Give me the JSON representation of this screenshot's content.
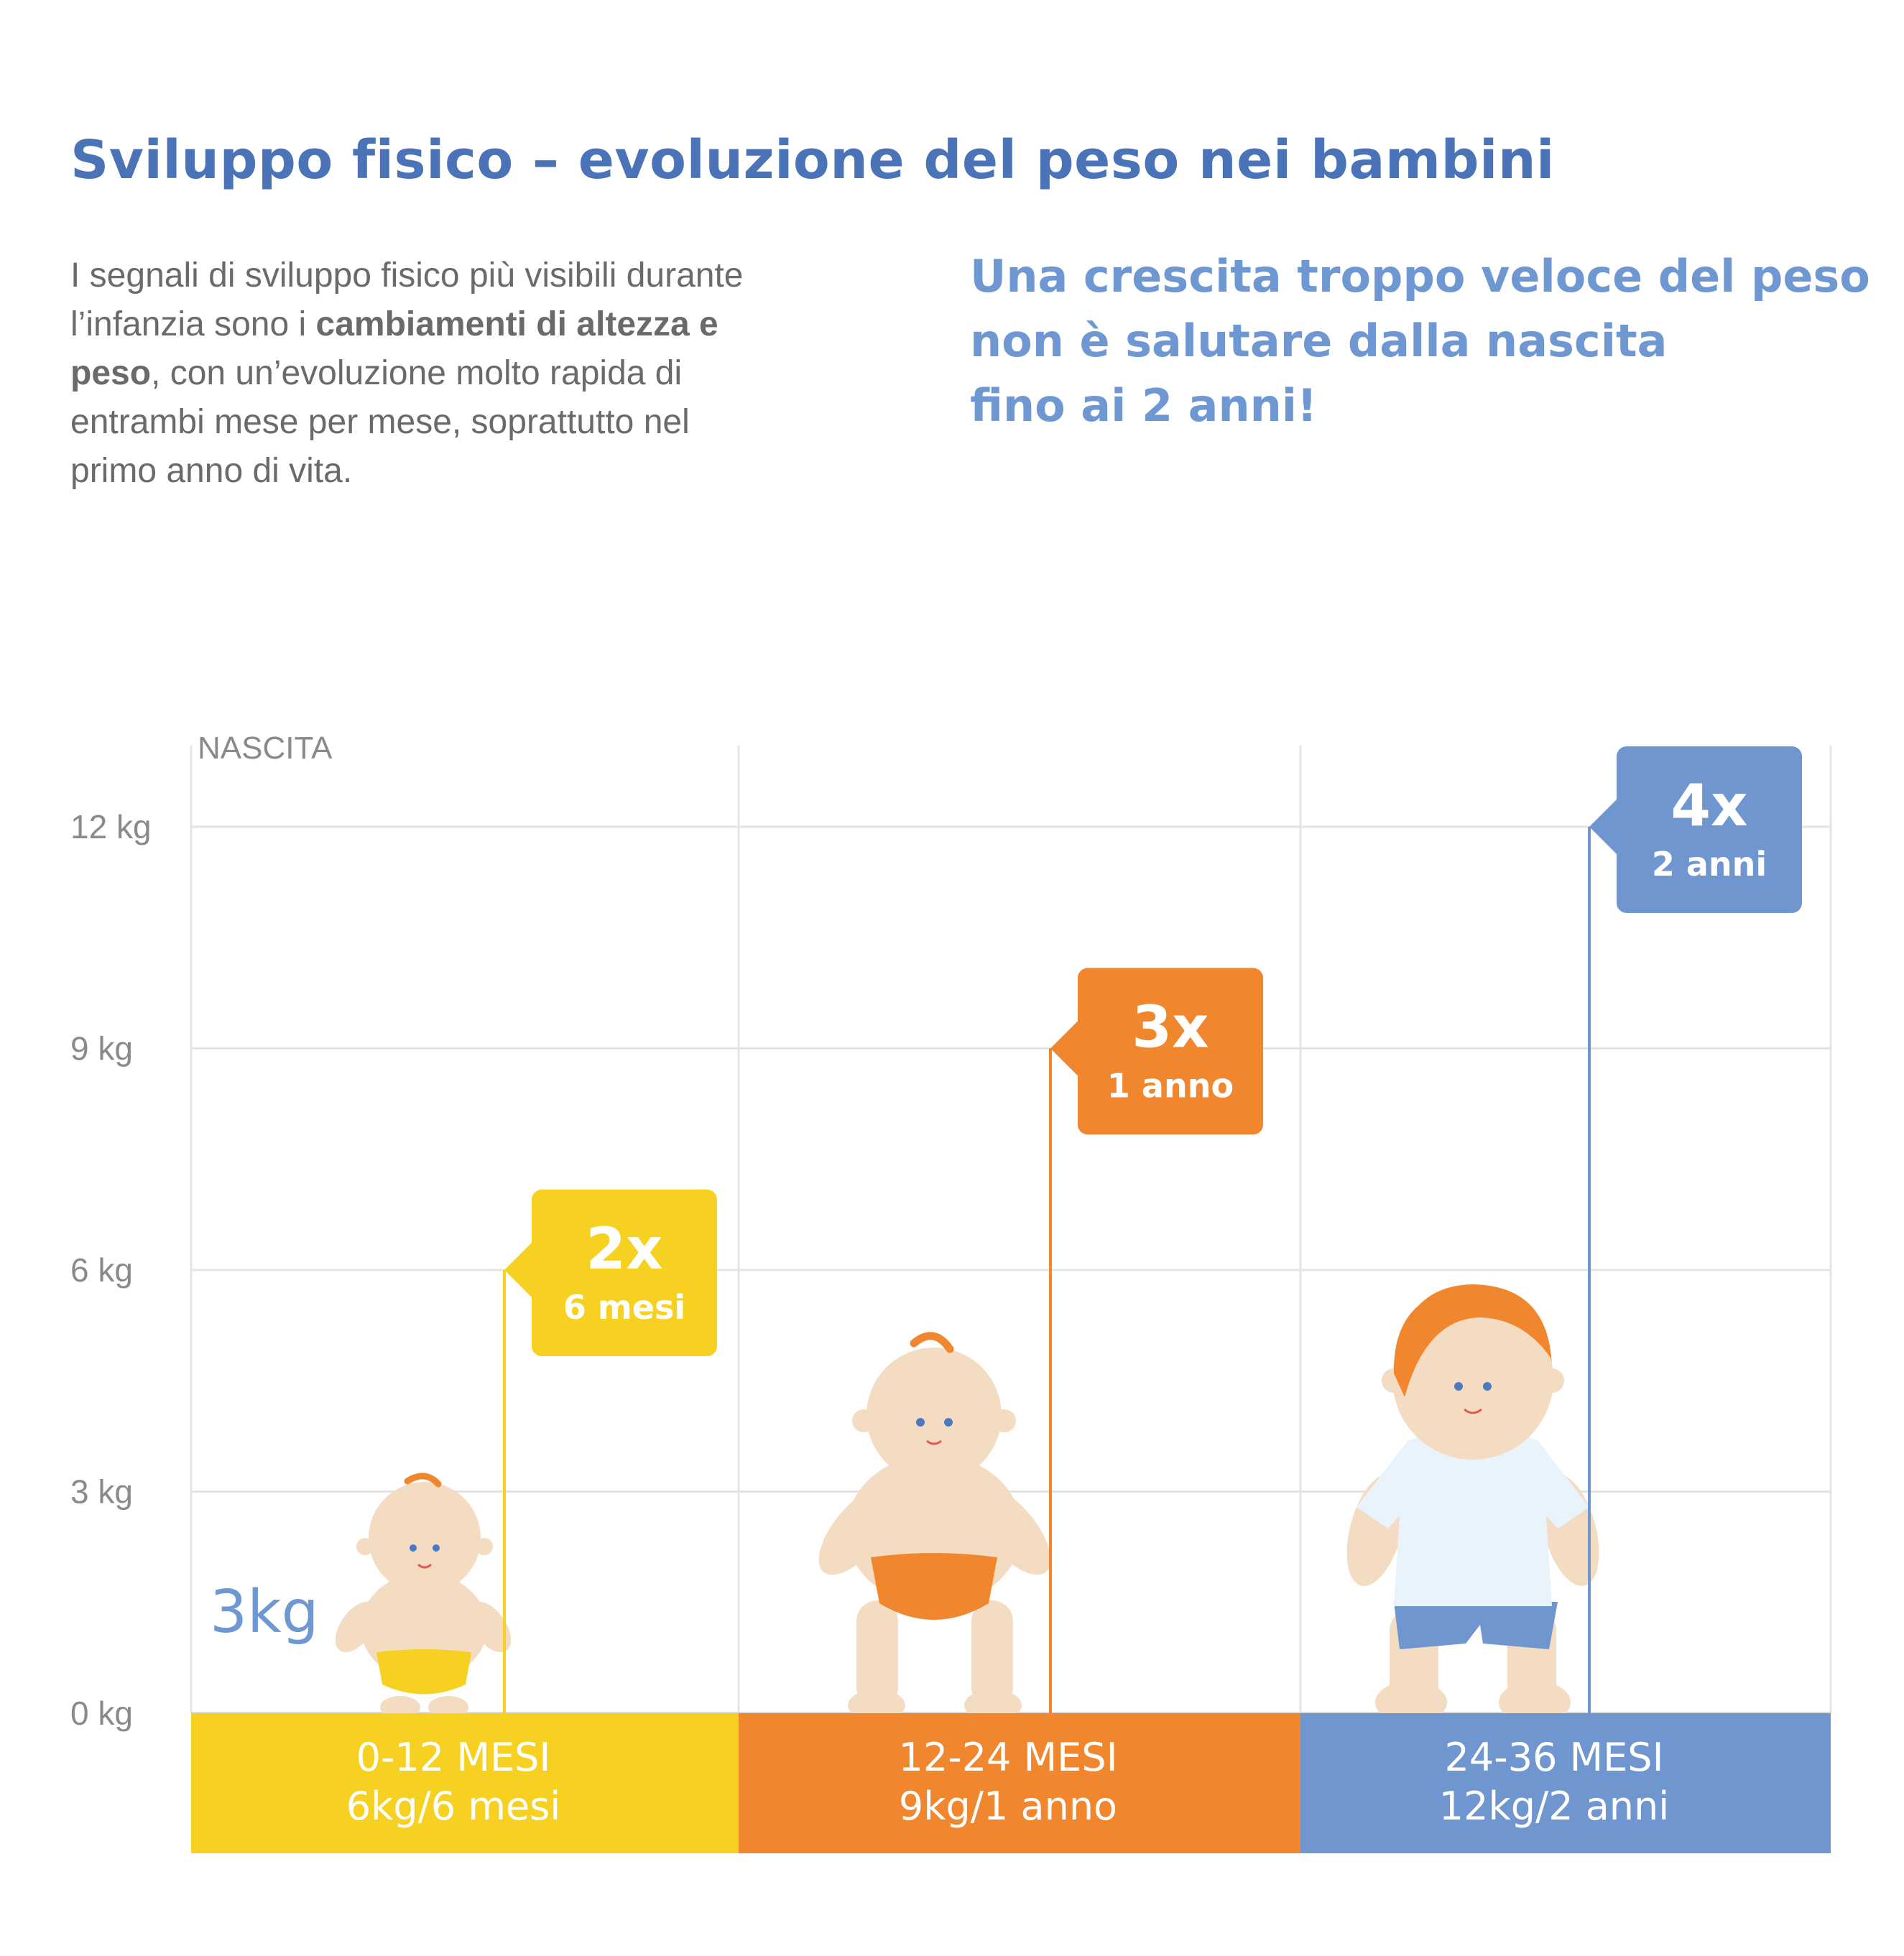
{
  "title": "Sviluppo fisico – evoluzione del peso nei bambini",
  "intro": {
    "p1": "I segnali di sviluppo fisico più visibili durante l’infanzia sono i ",
    "b1": "cambiamenti di altezza e peso",
    "p2": ", con un’evoluzione molto rapida di entrambi mese per mese, soprattutto nel primo anno di vita."
  },
  "highlight": {
    "line1": "Una crescita troppo veloce del peso",
    "line2": "non è salutare dalla nascita",
    "line3": "fino ai 2 anni!"
  },
  "colors": {
    "title": "#4b73b8",
    "highlight": "#6f98d3",
    "yellow": "#f6d121",
    "orange": "#f0862d",
    "blue": "#6f96cf",
    "grid": "#e4e4e4"
  },
  "chart_data": {
    "type": "bar",
    "corner_label": "NASCITA",
    "y_unit": "kg",
    "ylim": [
      0,
      12
    ],
    "yticks": [
      {
        "value": 0,
        "label": "0 kg"
      },
      {
        "value": 3,
        "label": "3 kg"
      },
      {
        "value": 6,
        "label": "6 kg"
      },
      {
        "value": 9,
        "label": "9 kg"
      },
      {
        "value": 12,
        "label": "12 kg"
      }
    ],
    "start_weight": {
      "value": 3,
      "label": "3kg"
    },
    "grid": true,
    "categories": [
      {
        "name": "0-12 MESI",
        "detail": "6kg/6 mesi",
        "value": 6,
        "multiplier": "2x",
        "age": "6 mesi",
        "color": "#f6d121",
        "figure": "neonato"
      },
      {
        "name": "12-24 MESI",
        "detail": "9kg/1 anno",
        "value": 9,
        "multiplier": "3x",
        "age": "1 anno",
        "color": "#f0862d",
        "figure": "bambino-seduto"
      },
      {
        "name": "24-36 MESI",
        "detail": "12kg/2 anni",
        "value": 12,
        "multiplier": "4x",
        "age": "2 anni",
        "color": "#6f96cf",
        "figure": "bambino-in-piedi"
      }
    ]
  }
}
